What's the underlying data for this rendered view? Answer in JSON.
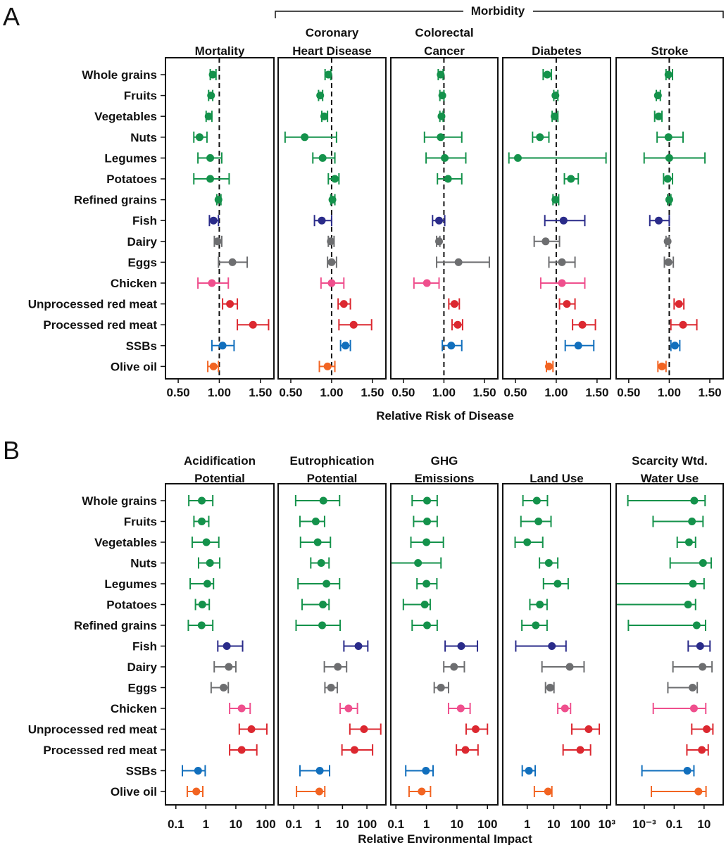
{
  "chart_data": [
    {
      "type": "scatter",
      "subtype": "forest-plot",
      "figure_label": "A",
      "group_label": "Morbidity",
      "xlabel": "Relative Risk of Disease",
      "xscale": "linear",
      "xlim": [
        0.345,
        1.665
      ],
      "reference_line": 1.0,
      "ticks": [
        0.5,
        1.0,
        1.5
      ],
      "tick_labels": [
        "0.50",
        "1.00",
        "1.50"
      ],
      "categories": [
        "Whole grains",
        "Fruits",
        "Vegetables",
        "Nuts",
        "Legumes",
        "Potatoes",
        "Refined grains",
        "Fish",
        "Dairy",
        "Eggs",
        "Chicken",
        "Unprocessed red meat",
        "Processed red meat",
        "SSBs",
        "Olive oil"
      ],
      "panels": [
        {
          "title": [
            "Mortality"
          ],
          "values": [
            [
              0.92,
              0.89,
              0.96
            ],
            [
              0.9,
              0.87,
              0.92
            ],
            [
              0.87,
              0.84,
              0.91
            ],
            [
              0.76,
              0.69,
              0.85
            ],
            [
              0.89,
              0.74,
              1.03
            ],
            [
              0.89,
              0.69,
              1.12
            ],
            [
              0.99,
              0.97,
              1.02
            ],
            [
              0.93,
              0.88,
              0.99
            ],
            [
              0.98,
              0.94,
              1.03
            ],
            [
              1.16,
              0.99,
              1.34
            ],
            [
              0.91,
              0.74,
              1.11
            ],
            [
              1.13,
              1.04,
              1.22
            ],
            [
              1.41,
              1.22,
              1.6
            ],
            [
              1.04,
              0.91,
              1.18
            ],
            [
              0.93,
              0.86,
              0.99
            ]
          ]
        },
        {
          "title": [
            "Coronary",
            "Heart Disease"
          ],
          "values": [
            [
              0.96,
              0.92,
              0.99
            ],
            [
              0.86,
              0.84,
              0.89
            ],
            [
              0.91,
              0.88,
              0.95
            ],
            [
              0.67,
              0.43,
              1.06
            ],
            [
              0.89,
              0.77,
              1.04
            ],
            [
              1.04,
              0.96,
              1.09
            ],
            [
              1.01,
              0.99,
              1.04
            ],
            [
              0.88,
              0.79,
              1.0
            ],
            [
              0.99,
              0.96,
              1.03
            ],
            [
              1.0,
              0.95,
              1.06
            ],
            [
              1.0,
              0.87,
              1.15
            ],
            [
              1.15,
              1.08,
              1.23
            ],
            [
              1.27,
              1.09,
              1.49
            ],
            [
              1.17,
              1.11,
              1.23
            ],
            [
              0.95,
              0.85,
              1.04
            ]
          ]
        },
        {
          "title": [
            "Colorectal",
            "Cancer"
          ],
          "values": [
            [
              0.96,
              0.93,
              0.99
            ],
            [
              0.98,
              0.95,
              1.0
            ],
            [
              0.97,
              0.95,
              0.99
            ],
            [
              0.96,
              0.76,
              1.22
            ],
            [
              1.01,
              0.78,
              1.27
            ],
            [
              1.05,
              0.92,
              1.22
            ],
            null,
            [
              0.94,
              0.86,
              1.01
            ],
            [
              0.94,
              0.91,
              0.95
            ],
            [
              1.18,
              0.91,
              1.56
            ],
            [
              0.79,
              0.63,
              0.94
            ],
            [
              1.13,
              1.06,
              1.19
            ],
            [
              1.17,
              1.1,
              1.23
            ],
            [
              1.09,
              0.98,
              1.22
            ],
            null
          ]
        },
        {
          "title": [
            "Diabetes"
          ],
          "values": [
            [
              0.89,
              0.84,
              0.94
            ],
            [
              0.99,
              0.97,
              1.02
            ],
            [
              0.98,
              0.95,
              1.02
            ],
            [
              0.8,
              0.71,
              0.91
            ],
            [
              0.53,
              0.42,
              1.61
            ],
            [
              1.18,
              1.1,
              1.27
            ],
            [
              0.99,
              0.96,
              1.03
            ],
            [
              1.09,
              0.86,
              1.35
            ],
            [
              0.87,
              0.73,
              1.04
            ],
            [
              1.07,
              0.91,
              1.23
            ],
            [
              1.07,
              0.81,
              1.35
            ],
            [
              1.13,
              1.04,
              1.23
            ],
            [
              1.32,
              1.2,
              1.48
            ],
            [
              1.27,
              1.11,
              1.46
            ],
            [
              0.91,
              0.88,
              0.96
            ]
          ]
        },
        {
          "title": [
            "Stroke"
          ],
          "values": [
            [
              0.99,
              0.96,
              1.04
            ],
            [
              0.86,
              0.84,
              0.89
            ],
            [
              0.87,
              0.82,
              0.91
            ],
            [
              0.99,
              0.85,
              1.17
            ],
            [
              1.0,
              0.69,
              1.44
            ],
            [
              0.98,
              0.93,
              1.04
            ],
            [
              1.0,
              0.98,
              1.02
            ],
            [
              0.87,
              0.76,
              1.0
            ],
            [
              0.98,
              0.96,
              1.0
            ],
            [
              0.99,
              0.94,
              1.05
            ],
            null,
            [
              1.12,
              1.06,
              1.18
            ],
            [
              1.17,
              1.02,
              1.34
            ],
            [
              1.07,
              1.02,
              1.13
            ],
            [
              0.91,
              0.86,
              0.96
            ]
          ]
        }
      ]
    },
    {
      "type": "scatter",
      "subtype": "forest-plot",
      "figure_label": "B",
      "xlabel": "Relative Environmental Impact",
      "xscale": "log",
      "categories": [
        "Whole grains",
        "Fruits",
        "Vegetables",
        "Nuts",
        "Legumes",
        "Potatoes",
        "Refined grains",
        "Fish",
        "Dairy",
        "Eggs",
        "Chicken",
        "Unprocessed red meat",
        "Processed red meat",
        "SSBs",
        "Olive oil"
      ],
      "panels": [
        {
          "title": [
            "Acidification",
            "Potential"
          ],
          "xlim": [
            0.045,
            186
          ],
          "ticks": [
            0.1,
            1,
            10,
            100
          ],
          "tick_labels": [
            "0.1",
            "1",
            "10",
            "100"
          ],
          "values": [
            [
              0.73,
              0.27,
              1.7
            ],
            [
              0.73,
              0.4,
              1.25
            ],
            [
              1.04,
              0.35,
              2.7
            ],
            [
              1.37,
              0.57,
              2.9
            ],
            [
              1.12,
              0.3,
              1.8
            ],
            [
              0.76,
              0.45,
              1.3
            ],
            [
              0.72,
              0.26,
              1.7
            ],
            [
              5.0,
              2.5,
              16.8
            ],
            [
              5.8,
              1.9,
              10
            ],
            [
              3.9,
              1.5,
              5.6
            ],
            [
              15.6,
              6.2,
              30
            ],
            [
              33,
              13,
              108
            ],
            [
              15.6,
              6.2,
              50
            ],
            [
              0.55,
              0.165,
              0.95
            ],
            [
              0.48,
              0.24,
              0.79
            ]
          ]
        },
        {
          "title": [
            "Eutrophication",
            "Potential"
          ],
          "xlim": [
            0.023,
            600
          ],
          "ticks": [
            0.1,
            1,
            10,
            100
          ],
          "tick_labels": [
            "0.1",
            "1",
            "10",
            "100"
          ],
          "values": [
            [
              1.64,
              0.12,
              7.6
            ],
            [
              0.8,
              0.18,
              1.84
            ],
            [
              0.96,
              0.19,
              3.2
            ],
            [
              1.34,
              0.5,
              2.8
            ],
            [
              2.2,
              0.15,
              7.6
            ],
            [
              1.57,
              0.22,
              2.8
            ],
            [
              1.47,
              0.125,
              8.0
            ],
            [
              45,
              11.4,
              109
            ],
            [
              6.4,
              1.8,
              14.7
            ],
            [
              3.4,
              1.9,
              6.1
            ],
            [
              17.6,
              8.0,
              41
            ],
            [
              76,
              20,
              370
            ],
            [
              31,
              9.5,
              171
            ],
            [
              1.17,
              0.18,
              2.95
            ],
            [
              1.12,
              0.13,
              1.88
            ]
          ]
        },
        {
          "title": [
            "GHG",
            "Emissions"
          ],
          "xlim": [
            0.068,
            219
          ],
          "ticks": [
            0.1,
            1,
            10,
            100
          ],
          "tick_labels": [
            "0.1",
            "1",
            "10",
            "100"
          ],
          "values": [
            [
              1.05,
              0.34,
              2.25
            ],
            [
              1.05,
              0.38,
              2.25
            ],
            [
              1.0,
              0.31,
              3.6
            ],
            [
              0.53,
              0.06,
              3.0
            ],
            [
              1.0,
              0.49,
              2.2
            ],
            [
              0.88,
              0.175,
              1.33
            ],
            [
              1.05,
              0.34,
              2.25
            ],
            [
              13.8,
              4.1,
              47
            ],
            [
              8.0,
              3.7,
              17.5
            ],
            [
              3.0,
              1.8,
              5.3
            ],
            [
              13.3,
              5.3,
              27
            ],
            [
              41,
              20,
              100
            ],
            [
              19,
              9.6,
              49
            ],
            [
              0.96,
              0.21,
              1.65
            ],
            [
              0.7,
              0.27,
              1.36
            ]
          ]
        },
        {
          "title": [
            "Land Use"
          ],
          "xlim": [
            0.12,
            1380
          ],
          "ticks": [
            1,
            10,
            100,
            1000
          ],
          "tick_labels": [
            "1",
            "10",
            "100",
            "10³"
          ],
          "values": [
            [
              2.3,
              0.69,
              5.8
            ],
            [
              2.65,
              0.58,
              7.9
            ],
            [
              1.0,
              0.35,
              3.85
            ],
            [
              6.5,
              2.9,
              14.2
            ],
            [
              14,
              4.1,
              35
            ],
            [
              3.0,
              1.26,
              5.6
            ],
            [
              2.1,
              0.63,
              5.6
            ],
            [
              8.5,
              0.37,
              29
            ],
            [
              40,
              3.6,
              139
            ],
            [
              7.3,
              4.9,
              10.2
            ],
            [
              26.5,
              14.2,
              43
            ],
            [
              207,
              48,
              522
            ],
            [
              100,
              22.5,
              244
            ],
            [
              1.16,
              0.65,
              2.0
            ],
            [
              6.1,
              1.86,
              8.5
            ]
          ]
        },
        {
          "title": [
            "Scarcity Wtd.",
            "Water Use"
          ],
          "xlim": [
            1.32e-05,
            190
          ],
          "ticks": [
            0.001,
            0.1,
            10
          ],
          "tick_labels": [
            "10⁻³",
            "0.1",
            "10"
          ],
          "values": [
            [
              2.2,
              8e-05,
              11.7
            ],
            [
              1.55,
              0.0039,
              8.5
            ],
            [
              0.98,
              0.16,
              2.7
            ],
            [
              8.5,
              0.054,
              30
            ],
            [
              1.8,
              1e-05,
              10
            ],
            [
              0.85,
              1e-05,
              2.7
            ],
            [
              3.2,
              8.7e-05,
              12.6
            ],
            [
              5.5,
              0.87,
              25
            ],
            [
              7.9,
              0.083,
              34
            ],
            [
              1.7,
              0.038,
              3.5
            ],
            [
              2.1,
              0.004,
              13
            ],
            [
              15,
              1.5,
              39
            ],
            [
              7.1,
              0.71,
              19
            ],
            [
              0.76,
              0.0007,
              2.1
            ],
            [
              4.2,
              0.003,
              13.5
            ]
          ]
        }
      ]
    }
  ],
  "colors": [
    "#14924b",
    "#14924b",
    "#14924b",
    "#14924b",
    "#14924b",
    "#14924b",
    "#14924b",
    "#2a2b8a",
    "#6d6e70",
    "#6d6e70",
    "#ef4f8d",
    "#dc2830",
    "#dc2830",
    "#116fbd",
    "#f26422"
  ]
}
